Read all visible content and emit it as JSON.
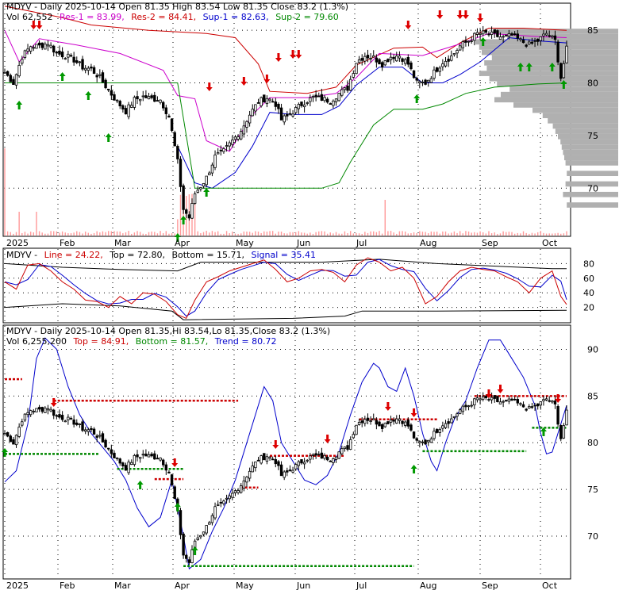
{
  "chart_data": [
    {
      "type": "candlestick",
      "panel": "price",
      "header": {
        "prefix": "MDYV - Daily 2025-10-14 Open 81.35  High 83.54  Low 81.35  Close 83.2 (1.3%)",
        "vol_text": "Vol 62,552",
        "res1_text": "Res-1 = 83.99,",
        "res2_text": "Res-2 = 84.41,",
        "sup1_text": "Sup-1 = 82.63,",
        "sup2_text": "Sup-2 = 79.60"
      },
      "yticks": [
        85,
        80,
        75,
        70
      ],
      "ylim": [
        65.5,
        87.5
      ],
      "xticks": [
        "2025",
        "Feb",
        "Mar",
        "Apr",
        "May",
        "Jun",
        "Jul",
        "Aug",
        "Sep",
        "Oct"
      ],
      "series_colors": {
        "up": "#000000",
        "down": "#000000",
        "res1": "#cc00cc",
        "res2": "#cc0000",
        "sup1": "#0000cc",
        "sup2": "#008800",
        "volume": "#ff9999",
        "profile": "#b0b0b0"
      }
    },
    {
      "type": "line",
      "panel": "stochastic",
      "header": {
        "prefix": "MDYV -",
        "line_text": "Line = 24.22,",
        "top_text": "Top = 72.80,",
        "bottom_text": "Bottom = 15.71,",
        "signal_text": "Signal = 35.41"
      },
      "yticks": [
        80,
        60,
        40,
        20
      ],
      "ylim": [
        0,
        100
      ],
      "series_colors": {
        "line": "#cc0000",
        "signal": "#0000cc",
        "bands": "#000000"
      }
    },
    {
      "type": "candlestick",
      "panel": "trend",
      "header": {
        "prefix": "MDYV - Daily 2025-10-14 Open 81.35,Hi 83.54,Lo 81.35,Close 83.2 (1.3%)",
        "vol_text": "Vol 6,255,200",
        "top_text": "Top = 84.91,",
        "bottom_text": "Bottom = 81.57,",
        "trend_text": "Trend = 80.72"
      },
      "yticks": [
        90,
        85,
        80,
        75,
        70
      ],
      "ylim": [
        65.5,
        92.5
      ],
      "xticks": [
        "2025",
        "Feb",
        "Mar",
        "Apr",
        "May",
        "Jun",
        "Jul",
        "Aug",
        "Sep",
        "Oct"
      ],
      "series_colors": {
        "band": "#0000cc",
        "top": "#cc0000",
        "bottom": "#008800"
      }
    }
  ]
}
